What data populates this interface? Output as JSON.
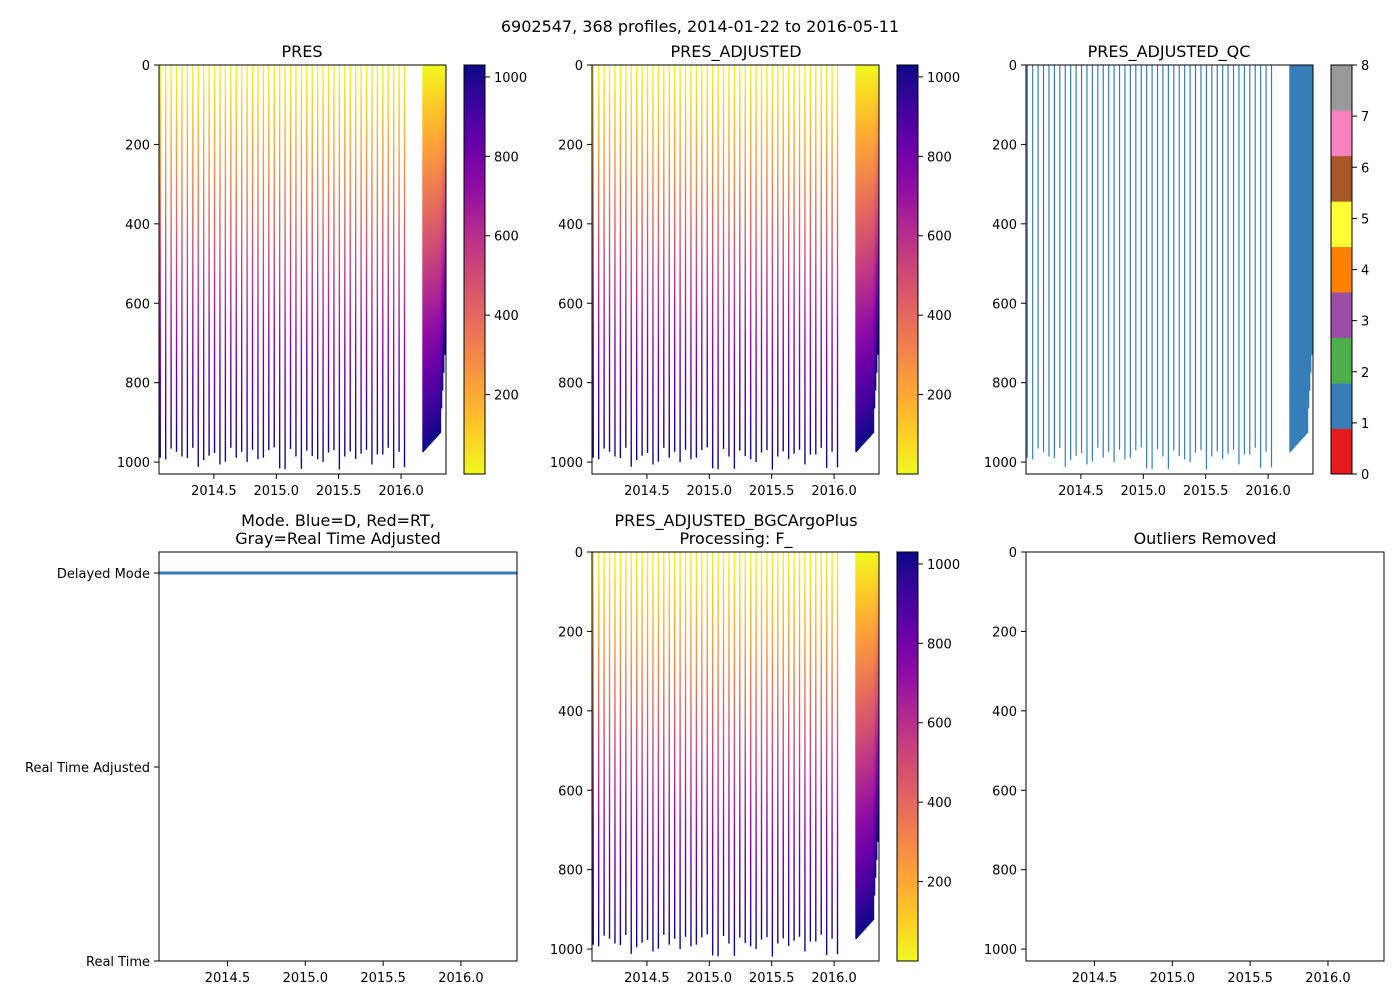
{
  "suptitle": "6902547, 368 profiles, 2014-01-22 to 2016-05-11",
  "colors": {
    "plasma": [
      "#0d0887",
      "#3e049c",
      "#6a00a8",
      "#8f0da4",
      "#b12a90",
      "#cc4778",
      "#e16462",
      "#f2844b",
      "#fca636",
      "#fcce25",
      "#f0f921"
    ],
    "qc": [
      "#e41a1c",
      "#377eb8",
      "#4daf4a",
      "#984ea3",
      "#ff7f00",
      "#ffff33",
      "#a65628",
      "#f781bf",
      "#999999"
    ],
    "mode_line": "#377eb8"
  },
  "chart_data": [
    {
      "id": "pres",
      "type": "heatmap",
      "title": "PRES",
      "xlim": [
        2014.06,
        2016.36
      ],
      "ylim": [
        1030,
        0
      ],
      "xticks": [
        "2014.5",
        "2015.0",
        "2015.5",
        "2016.0"
      ],
      "yticks": [
        "0",
        "200",
        "400",
        "600",
        "800",
        "1000"
      ],
      "colorbar": {
        "range": [
          0,
          1030
        ],
        "ticks": [
          "200",
          "400",
          "600",
          "800",
          "1000"
        ],
        "cmap": "plasma_r"
      }
    },
    {
      "id": "pres_adj",
      "type": "heatmap",
      "title": "PRES_ADJUSTED",
      "xlim": [
        2014.06,
        2016.36
      ],
      "ylim": [
        1030,
        0
      ],
      "xticks": [
        "2014.5",
        "2015.0",
        "2015.5",
        "2016.0"
      ],
      "yticks": [
        "0",
        "200",
        "400",
        "600",
        "800",
        "1000"
      ],
      "colorbar": {
        "range": [
          0,
          1030
        ],
        "ticks": [
          "200",
          "400",
          "600",
          "800",
          "1000"
        ],
        "cmap": "plasma_r"
      }
    },
    {
      "id": "pres_qc",
      "type": "heatmap",
      "title": "PRES_ADJUSTED_QC",
      "xlim": [
        2014.06,
        2016.36
      ],
      "ylim": [
        1030,
        0
      ],
      "xticks": [
        "2014.5",
        "2015.0",
        "2015.5",
        "2016.0"
      ],
      "yticks": [
        "0",
        "200",
        "400",
        "600",
        "800",
        "1000"
      ],
      "qc_value": 1,
      "colorbar": {
        "range": [
          0,
          8
        ],
        "ticks": [
          "0",
          "1",
          "2",
          "3",
          "4",
          "5",
          "6",
          "7",
          "8"
        ],
        "cmap": "qc"
      }
    },
    {
      "id": "mode",
      "type": "line",
      "title_line1": "Mode. Blue=D, Red=RT,",
      "title_line2": "Gray=Real Time Adjusted",
      "xlim": [
        2014.06,
        2016.36
      ],
      "xticks": [
        "2014.5",
        "2015.0",
        "2015.5",
        "2016.0"
      ],
      "yticks": [
        "Delayed Mode",
        "Real Time Adjusted",
        "Real Time"
      ],
      "series": [
        {
          "name": "D",
          "value": "Delayed Mode",
          "x_range": [
            2014.06,
            2016.36
          ]
        }
      ]
    },
    {
      "id": "bgc",
      "type": "heatmap",
      "title_line1": "PRES_ADJUSTED_BGCArgoPlus",
      "title_line2": "Processing: F_",
      "xlim": [
        2014.06,
        2016.36
      ],
      "ylim": [
        1030,
        0
      ],
      "xticks": [
        "2014.5",
        "2015.0",
        "2015.5",
        "2016.0"
      ],
      "yticks": [
        "0",
        "200",
        "400",
        "600",
        "800",
        "1000"
      ],
      "colorbar": {
        "range": [
          0,
          1030
        ],
        "ticks": [
          "200",
          "400",
          "600",
          "800",
          "1000"
        ],
        "cmap": "plasma_r"
      }
    },
    {
      "id": "outliers",
      "type": "scatter",
      "title": "Outliers Removed",
      "xlim": [
        2014.06,
        2016.36
      ],
      "ylim": [
        1030,
        0
      ],
      "xticks": [
        "2014.5",
        "2015.0",
        "2015.5",
        "2016.0"
      ],
      "yticks": [
        "0",
        "200",
        "400",
        "600",
        "800",
        "1000"
      ],
      "values": []
    }
  ]
}
